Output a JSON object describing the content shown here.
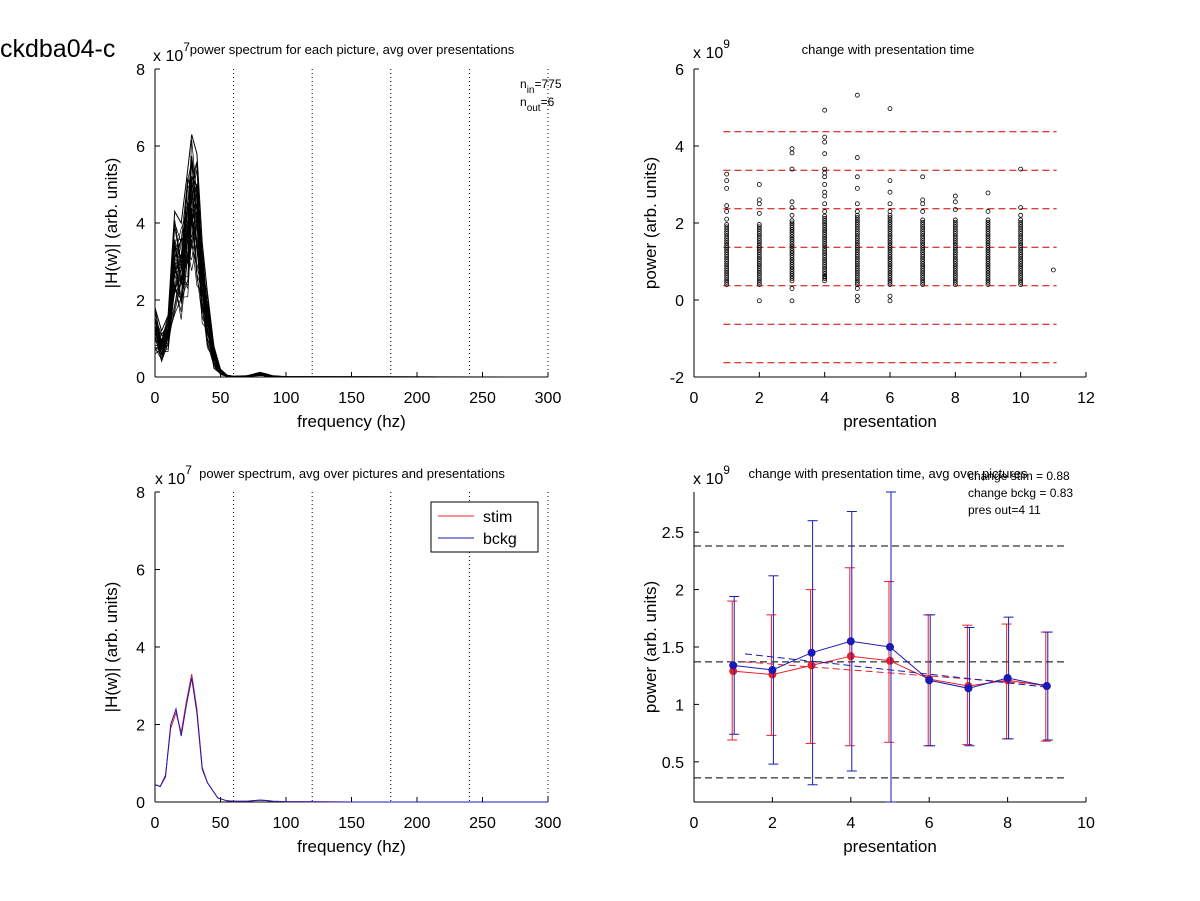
{
  "figure": {
    "id_label": "ckdba04-c",
    "tl_exponent_base": "x 10",
    "tl_exponent_sup": "7",
    "tl_title": "power spectrum for each picture, avg over presentations",
    "tl_nin_base": "n",
    "tl_nin_sub": "in",
    "tl_nin_val": "=775",
    "tl_nout_base": "n",
    "tl_nout_sub": "out",
    "tl_nout_val": "=6",
    "tr_exponent_base": "x 10",
    "tr_exponent_sup": "9",
    "tr_title": "change with presentation time",
    "bl_exponent_base": "x 10",
    "bl_exponent_sup": "7",
    "bl_title": "power spectrum, avg over pictures and presentations",
    "br_exponent_base": "x 10",
    "br_exponent_sup": "9",
    "br_title": "change with presentation time, avg over pictures",
    "br_note1": "change stim = 0.88",
    "br_note2": "change bckg = 0.83",
    "br_note3": "pres out=4 11"
  },
  "colors": {
    "stim": "#e8202a",
    "bckg": "#1a1ab4",
    "black": "#000000",
    "ref": "#cc0000"
  },
  "chart_data": [
    {
      "panel": "top-left",
      "type": "line",
      "title": "power spectrum for each picture, avg over presentations",
      "xlabel": "frequency (hz)",
      "ylabel": "|H(w)| (arb. units)",
      "xlim": [
        0,
        300
      ],
      "ylim": [
        0,
        8
      ],
      "y_multiplier": "x 10^7",
      "x_ticks": [
        0,
        50,
        100,
        150,
        200,
        250,
        300
      ],
      "y_ticks": [
        0,
        2,
        4,
        6,
        8
      ],
      "vlines": [
        60,
        120,
        180,
        240,
        300
      ],
      "annotations": [
        "n_in=775",
        "n_out=6"
      ],
      "series_summary": "many overlapping spectra peaking at 15-35 Hz; envelope max",
      "envelope_x": [
        0,
        5,
        10,
        15,
        20,
        25,
        28,
        32,
        36,
        40,
        45,
        50,
        55,
        60,
        70,
        80,
        85,
        90,
        100,
        300
      ],
      "envelope_max": [
        1.8,
        1.2,
        1.6,
        4.3,
        4.0,
        5.4,
        6.3,
        5.8,
        3.5,
        2.2,
        0.8,
        0.2,
        0.05,
        0.02,
        0.03,
        0.12,
        0.08,
        0.03,
        0.01,
        0.0
      ],
      "envelope_min": [
        0.3,
        0.2,
        0.5,
        0.9,
        1.0,
        1.4,
        2.0,
        1.6,
        0.9,
        0.4,
        0.1,
        0.02,
        0.0,
        0.0,
        0.0,
        0.02,
        0.0,
        0.0,
        0.0,
        0.0
      ]
    },
    {
      "panel": "top-right",
      "type": "scatter",
      "title": "change with presentation time",
      "xlabel": "presentation",
      "ylabel": "power (arb. units)",
      "xlim": [
        0,
        12
      ],
      "ylim": [
        -2,
        6
      ],
      "y_multiplier": "x 10^9",
      "x_ticks": [
        0,
        2,
        4,
        6,
        8,
        10,
        12
      ],
      "y_ticks": [
        -2,
        0,
        2,
        4,
        6
      ],
      "hlines": [
        4.37,
        3.37,
        2.37,
        1.37,
        0.37,
        -0.63,
        -1.63
      ],
      "points": [
        {
          "x": 1,
          "y": [
            3.27,
            3.1,
            2.9,
            2.45,
            2.3,
            2.1
          ]
        },
        {
          "x": 2,
          "y": [
            3.0,
            2.6,
            2.5,
            2.25,
            -0.02
          ]
        },
        {
          "x": 3,
          "y": [
            3.93,
            3.82,
            3.4,
            2.55,
            2.4,
            2.2,
            0.3,
            -0.02
          ]
        },
        {
          "x": 4,
          "y": [
            4.93,
            4.23,
            4.1,
            3.8,
            3.4,
            3.3,
            3.2,
            3.0,
            2.8,
            2.7,
            2.5,
            2.3,
            0.6
          ]
        },
        {
          "x": 5,
          "y": [
            5.32,
            3.7,
            3.2,
            2.9,
            2.5,
            2.3,
            0.3,
            0.1,
            -0.02
          ]
        },
        {
          "x": 6,
          "y": [
            4.97,
            3.1,
            2.8,
            2.5,
            2.3,
            0.1,
            -0.02
          ]
        },
        {
          "x": 7,
          "y": [
            3.2,
            2.6,
            2.5,
            2.3
          ]
        },
        {
          "x": 8,
          "y": [
            2.7,
            2.55,
            2.35
          ]
        },
        {
          "x": 9,
          "y": [
            2.78,
            2.3
          ]
        },
        {
          "x": 10,
          "y": [
            3.4,
            2.4,
            2.2
          ]
        },
        {
          "x": 11,
          "y": [
            0.78
          ]
        }
      ],
      "dense_ranges": [
        [
          1,
          0.4,
          2.0
        ],
        [
          2,
          0.4,
          2.0
        ],
        [
          3,
          0.5,
          2.1
        ],
        [
          4,
          0.5,
          2.2
        ],
        [
          5,
          0.4,
          2.2
        ],
        [
          6,
          0.4,
          2.2
        ],
        [
          7,
          0.4,
          2.1
        ],
        [
          8,
          0.4,
          2.1
        ],
        [
          9,
          0.4,
          2.1
        ],
        [
          10,
          0.4,
          2.1
        ]
      ]
    },
    {
      "panel": "bottom-left",
      "type": "line",
      "title": "power spectrum, avg over pictures and presentations",
      "xlabel": "frequency (hz)",
      "ylabel": "|H(w)| (arb. units)",
      "xlim": [
        0,
        300
      ],
      "ylim": [
        0,
        8
      ],
      "y_multiplier": "x 10^7",
      "x_ticks": [
        0,
        50,
        100,
        150,
        200,
        250,
        300
      ],
      "y_ticks": [
        0,
        2,
        4,
        6,
        8
      ],
      "vlines": [
        60,
        120,
        180,
        240,
        300
      ],
      "legend_position": "top-right",
      "x": [
        0,
        4,
        8,
        12,
        16,
        20,
        24,
        28,
        32,
        36,
        40,
        48,
        55,
        60,
        70,
        80,
        85,
        90,
        100,
        150,
        200,
        250,
        300
      ],
      "series": [
        {
          "name": "stim",
          "values": [
            0.45,
            0.4,
            0.7,
            1.9,
            2.3,
            1.8,
            2.6,
            3.3,
            2.4,
            0.9,
            0.5,
            0.1,
            0.03,
            0.02,
            0.02,
            0.05,
            0.04,
            0.02,
            0.01,
            0.0,
            0.0,
            0.0,
            0.0
          ]
        },
        {
          "name": "bckg",
          "values": [
            0.45,
            0.4,
            0.65,
            2.0,
            2.4,
            1.7,
            2.5,
            3.2,
            2.3,
            0.85,
            0.5,
            0.1,
            0.03,
            0.02,
            0.02,
            0.05,
            0.04,
            0.02,
            0.01,
            0.0,
            0.0,
            0.0,
            0.0
          ]
        }
      ]
    },
    {
      "panel": "bottom-right",
      "type": "line",
      "title": "change with presentation time, avg over pictures",
      "xlabel": "presentation",
      "ylabel": "power (arb. units)",
      "xlim": [
        0,
        10
      ],
      "ylim": [
        0.15,
        2.85
      ],
      "y_multiplier": "x 10^9",
      "x_ticks": [
        0,
        2,
        4,
        6,
        8,
        10
      ],
      "y_ticks": [
        0.5,
        1,
        1.5,
        2,
        2.5
      ],
      "hlines": [
        2.38,
        1.37,
        0.36
      ],
      "x": [
        1,
        2,
        3,
        4,
        5,
        6,
        7,
        8,
        9
      ],
      "series": [
        {
          "name": "stim",
          "values": [
            1.29,
            1.26,
            1.34,
            1.42,
            1.38,
            1.22,
            1.16,
            1.21,
            1.16
          ],
          "err_low": [
            0.69,
            0.73,
            0.66,
            0.64,
            0.67,
            0.64,
            0.65,
            0.7,
            0.68
          ],
          "err_high": [
            1.9,
            1.78,
            2.0,
            2.19,
            2.07,
            1.78,
            1.69,
            1.7,
            1.63
          ]
        },
        {
          "name": "bckg",
          "values": [
            1.34,
            1.3,
            1.45,
            1.55,
            1.5,
            1.21,
            1.14,
            1.23,
            1.16
          ],
          "err_low": [
            0.74,
            0.48,
            0.3,
            0.42,
            0.15,
            0.64,
            0.64,
            0.7,
            0.69
          ],
          "err_high": [
            1.94,
            2.12,
            2.6,
            2.68,
            2.85,
            1.78,
            1.67,
            1.76,
            1.63
          ]
        }
      ],
      "trend_stim": [
        [
          1.3,
          1.37
        ],
        [
          9,
          1.17
        ]
      ],
      "trend_bckg": [
        [
          1.3,
          1.44
        ],
        [
          9,
          1.15
        ]
      ]
    }
  ]
}
